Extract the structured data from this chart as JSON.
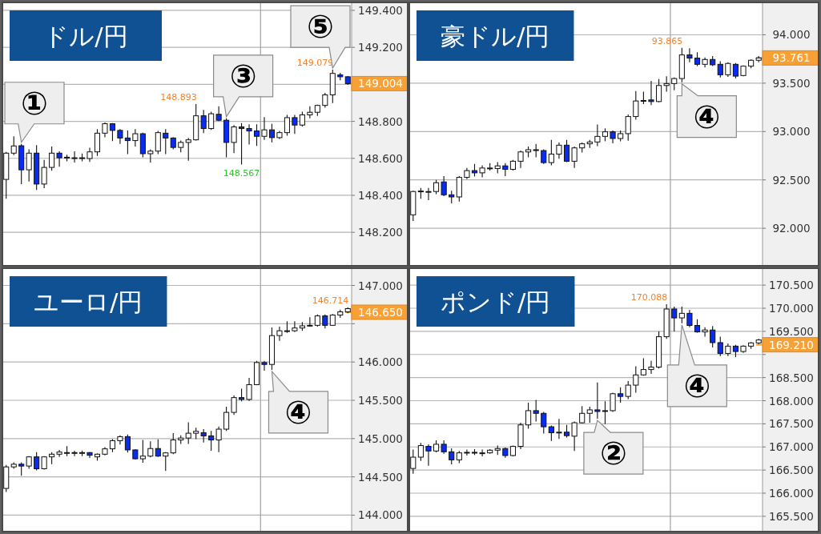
{
  "chart_data": [
    {
      "type": "candlestick",
      "title": "ドル/円",
      "grid": "y",
      "categories": [
        null,
        null,
        null,
        null,
        null,
        null,
        null,
        null,
        null,
        null,
        null,
        null,
        null,
        null,
        null,
        null,
        null,
        null,
        null,
        null,
        null,
        null,
        null,
        null,
        null,
        null,
        null,
        null,
        null,
        null,
        null,
        null,
        null,
        null,
        null,
        null,
        null,
        null,
        null,
        null,
        null,
        null,
        null,
        null,
        null,
        null
      ],
      "ylim": [
        148.019,
        149.443
      ],
      "yticks": [
        {
          "value": 148.2,
          "label": "148.200"
        },
        {
          "value": 148.4,
          "label": "148.400"
        },
        {
          "value": 148.6,
          "label": "148.600"
        },
        {
          "value": 148.8,
          "label": "148.800"
        },
        {
          "value": 149.0,
          "label": null
        },
        {
          "value": 149.2,
          "label": "149.200"
        },
        {
          "value": 149.4,
          "label": "149.400"
        }
      ],
      "ohlc": [
        [
          148.486,
          148.635,
          148.381,
          148.628
        ],
        [
          148.628,
          148.719,
          148.617,
          148.667
        ],
        [
          148.668,
          148.678,
          148.461,
          148.538
        ],
        [
          148.538,
          148.649,
          148.475,
          148.628
        ],
        [
          148.628,
          148.671,
          148.429,
          148.461
        ],
        [
          148.461,
          148.591,
          148.439,
          148.551
        ],
        [
          148.551,
          148.664,
          148.533,
          148.628
        ],
        [
          148.628,
          148.638,
          148.555,
          148.603
        ],
        [
          148.606,
          148.62,
          148.584,
          148.606
        ],
        [
          148.603,
          148.638,
          148.577,
          148.603
        ],
        [
          148.603,
          148.626,
          148.584,
          148.603
        ],
        [
          148.599,
          148.657,
          148.581,
          148.635
        ],
        [
          148.635,
          148.758,
          148.613,
          148.736
        ],
        [
          148.736,
          148.794,
          148.714,
          148.787
        ],
        [
          148.787,
          148.791,
          148.693,
          148.751
        ],
        [
          148.751,
          148.758,
          148.678,
          148.71
        ],
        [
          148.71,
          148.751,
          148.623,
          148.696
        ],
        [
          148.696,
          148.758,
          148.664,
          148.733
        ],
        [
          148.733,
          148.739,
          148.606,
          148.625
        ],
        [
          148.625,
          148.649,
          148.577,
          148.639
        ],
        [
          148.639,
          148.748,
          148.623,
          148.739
        ],
        [
          148.736,
          148.758,
          148.623,
          148.71
        ],
        [
          148.71,
          148.714,
          148.649,
          148.659
        ],
        [
          148.659,
          148.696,
          148.632,
          148.686
        ],
        [
          148.686,
          148.71,
          148.587,
          148.7
        ],
        [
          148.7,
          148.893,
          148.696,
          148.83
        ],
        [
          148.83,
          148.862,
          148.736,
          148.761
        ],
        [
          148.761,
          148.852,
          148.754,
          148.841
        ],
        [
          148.838,
          148.881,
          148.801,
          148.806
        ],
        [
          148.806,
          148.816,
          148.606,
          148.686
        ],
        [
          148.686,
          148.78,
          148.628,
          148.77
        ],
        [
          148.77,
          148.791,
          148.567,
          148.761
        ],
        [
          148.761,
          148.784,
          148.675,
          148.748
        ],
        [
          148.748,
          148.784,
          148.667,
          148.719
        ],
        [
          148.719,
          148.823,
          148.7,
          148.754
        ],
        [
          148.754,
          148.787,
          148.686,
          148.712
        ],
        [
          148.712,
          148.748,
          148.704,
          148.739
        ],
        [
          148.739,
          148.835,
          148.722,
          148.82
        ],
        [
          148.82,
          148.835,
          148.732,
          148.78
        ],
        [
          148.78,
          148.852,
          148.772,
          148.835
        ],
        [
          148.835,
          148.881,
          148.816,
          148.849
        ],
        [
          148.849,
          148.89,
          148.83,
          148.886
        ],
        [
          148.886,
          148.954,
          148.874,
          148.943
        ],
        [
          148.943,
          149.079,
          148.899,
          149.059
        ],
        [
          149.051,
          149.062,
          149.022,
          149.041
        ],
        [
          149.041,
          149.045,
          148.997,
          149.004
        ]
      ],
      "colors": [
        "#ffffff",
        "#ffffff",
        "#0a2cf0",
        "#ffffff",
        "#0a2cf0",
        "#ffffff",
        "#ffffff",
        "#0a2cf0",
        "#ffffff",
        "#ffffff",
        "#ffffff",
        "#ffffff",
        "#ffffff",
        "#ffffff",
        "#0a2cf0",
        "#0a2cf0",
        "#0a2cf0",
        "#ffffff",
        "#0a2cf0",
        "#ffffff",
        "#ffffff",
        "#0a2cf0",
        "#0a2cf0",
        "#ffffff",
        "#ffffff",
        "#ffffff",
        "#0a2cf0",
        "#ffffff",
        "#0a2cf0",
        "#0a2cf0",
        "#ffffff",
        "#0a2cf0",
        "#0a2cf0",
        "#0a2cf0",
        "#ffffff",
        "#0a2cf0",
        "#ffffff",
        "#ffffff",
        "#0a2cf0",
        "#ffffff",
        "#ffffff",
        "#ffffff",
        "#ffffff",
        "#ffffff",
        "#0a2cf0",
        "#0a2cf0"
      ],
      "ref_lines": [
        {
          "axis": "y",
          "value": 149.004,
          "label": "149.004",
          "color": "#f7a035"
        }
      ],
      "value_labels": [
        null,
        null,
        null,
        null,
        null,
        null,
        null,
        null,
        null,
        null,
        null,
        null,
        null,
        null,
        null,
        null,
        null,
        null,
        null,
        null,
        null,
        null,
        null,
        null,
        null,
        "148.893",
        null,
        null,
        null,
        null,
        null,
        "148.567",
        null,
        null,
        null,
        null,
        null,
        null,
        null,
        null,
        null,
        null,
        null,
        "149.079",
        null,
        null
      ],
      "annotations": [
        "①",
        "③",
        "⑤"
      ]
    },
    {
      "type": "candlestick",
      "title": "豪ドル/円",
      "grid": "y",
      "categories": [
        null,
        null,
        null,
        null,
        null,
        null,
        null,
        null,
        null,
        null,
        null,
        null,
        null,
        null,
        null,
        null,
        null,
        null,
        null,
        null,
        null,
        null,
        null,
        null,
        null,
        null,
        null,
        null,
        null,
        null,
        null,
        null,
        null,
        null,
        null,
        null,
        null,
        null,
        null,
        null,
        null,
        null,
        null,
        null,
        null,
        null
      ],
      "ylim": [
        91.612,
        94.335
      ],
      "yticks": [
        {
          "value": 92.0,
          "label": "92.000"
        },
        {
          "value": 92.5,
          "label": "92.500"
        },
        {
          "value": 93.0,
          "label": "93.000"
        },
        {
          "value": 93.5,
          "label": "93.500"
        },
        {
          "value": 94.0,
          "label": "94.000"
        }
      ],
      "ohlc": [
        [
          92.139,
          92.388,
          92.075,
          92.38
        ],
        [
          92.385,
          92.416,
          92.305,
          92.385
        ],
        [
          92.38,
          92.416,
          92.291,
          92.38
        ],
        [
          92.38,
          92.499,
          92.352,
          92.471
        ],
        [
          92.479,
          92.54,
          92.332,
          92.346
        ],
        [
          92.346,
          92.388,
          92.258,
          92.324
        ],
        [
          92.324,
          92.54,
          92.277,
          92.526
        ],
        [
          92.526,
          92.623,
          92.507,
          92.596
        ],
        [
          92.596,
          92.665,
          92.535,
          92.573
        ],
        [
          92.573,
          92.651,
          92.526,
          92.623
        ],
        [
          92.623,
          92.673,
          92.596,
          92.623
        ],
        [
          92.618,
          92.684,
          92.568,
          92.645
        ],
        [
          92.645,
          92.673,
          92.54,
          92.609
        ],
        [
          92.609,
          92.706,
          92.596,
          92.693
        ],
        [
          92.693,
          92.803,
          92.623,
          92.789
        ],
        [
          92.789,
          92.845,
          92.734,
          92.812
        ],
        [
          92.812,
          92.873,
          92.734,
          92.812
        ],
        [
          92.803,
          92.817,
          92.665,
          92.679
        ],
        [
          92.679,
          92.914,
          92.651,
          92.767
        ],
        [
          92.767,
          92.886,
          92.72,
          92.859
        ],
        [
          92.859,
          92.914,
          92.684,
          92.693
        ],
        [
          92.693,
          92.845,
          92.623,
          92.831
        ],
        [
          92.831,
          92.886,
          92.784,
          92.873
        ],
        [
          92.873,
          92.914,
          92.831,
          92.892
        ],
        [
          92.892,
          93.072,
          92.85,
          92.95
        ],
        [
          92.95,
          93.033,
          92.9,
          92.997
        ],
        [
          92.997,
          93.011,
          92.878,
          92.928
        ],
        [
          92.928,
          93.011,
          92.9,
          92.978
        ],
        [
          92.978,
          93.177,
          92.906,
          93.155
        ],
        [
          93.155,
          93.418,
          93.122,
          93.316
        ],
        [
          93.321,
          93.413,
          93.283,
          93.321
        ],
        [
          93.327,
          93.524,
          93.274,
          93.31
        ],
        [
          93.31,
          93.543,
          93.302,
          93.476
        ],
        [
          93.476,
          93.571,
          93.413,
          93.496
        ],
        [
          93.496,
          93.56,
          93.427,
          93.548
        ],
        [
          93.548,
          93.865,
          93.51,
          93.792
        ],
        [
          93.792,
          93.861,
          93.717,
          93.759
        ],
        [
          93.759,
          93.82,
          93.676,
          93.695
        ],
        [
          93.695,
          93.765,
          93.662,
          93.745
        ],
        [
          93.745,
          93.781,
          93.676,
          93.69
        ],
        [
          93.695,
          93.726,
          93.56,
          93.587
        ],
        [
          93.587,
          93.717,
          93.565,
          93.704
        ],
        [
          93.695,
          93.709,
          93.551,
          93.573
        ],
        [
          93.579,
          93.684,
          93.571,
          93.676
        ],
        [
          93.676,
          93.745,
          93.654,
          93.737
        ],
        [
          93.737,
          93.781,
          93.717,
          93.761
        ]
      ],
      "colors": [
        "#ffffff",
        "#ffffff",
        "#ffffff",
        "#ffffff",
        "#0a2cf0",
        "#0a2cf0",
        "#ffffff",
        "#ffffff",
        "#0a2cf0",
        "#ffffff",
        "#ffffff",
        "#ffffff",
        "#0a2cf0",
        "#ffffff",
        "#ffffff",
        "#ffffff",
        "#ffffff",
        "#0a2cf0",
        "#ffffff",
        "#ffffff",
        "#0a2cf0",
        "#ffffff",
        "#ffffff",
        "#ffffff",
        "#ffffff",
        "#ffffff",
        "#0a2cf0",
        "#ffffff",
        "#ffffff",
        "#ffffff",
        "#ffffff",
        "#0a2cf0",
        "#ffffff",
        "#ffffff",
        "#ffffff",
        "#ffffff",
        "#0a2cf0",
        "#0a2cf0",
        "#ffffff",
        "#0a2cf0",
        "#0a2cf0",
        "#ffffff",
        "#0a2cf0",
        "#ffffff",
        "#ffffff",
        "#ffffff"
      ],
      "ref_lines": [
        {
          "axis": "y",
          "value": 93.761,
          "label": "93.761",
          "color": "#f7a035"
        }
      ],
      "value_labels": [
        null,
        null,
        null,
        null,
        null,
        null,
        null,
        null,
        null,
        null,
        null,
        null,
        null,
        null,
        null,
        null,
        null,
        null,
        null,
        null,
        null,
        null,
        null,
        null,
        null,
        null,
        null,
        null,
        null,
        null,
        null,
        null,
        null,
        null,
        null,
        "93.865",
        null,
        null,
        null,
        null,
        null,
        null,
        null,
        null,
        null,
        null
      ],
      "annotations": [
        "④"
      ]
    },
    {
      "type": "candlestick",
      "title": "ユーロ/円",
      "grid": "y",
      "categories": [
        null,
        null,
        null,
        null,
        null,
        null,
        null,
        null,
        null,
        null,
        null,
        null,
        null,
        null,
        null,
        null,
        null,
        null,
        null,
        null,
        null,
        null,
        null,
        null,
        null,
        null,
        null,
        null,
        null,
        null,
        null,
        null,
        null,
        null,
        null,
        null,
        null,
        null,
        null,
        null,
        null,
        null,
        null,
        null,
        null,
        null
      ],
      "ylim": [
        143.785,
        147.225
      ],
      "yticks": [
        {
          "value": 144.0,
          "label": "144.000"
        },
        {
          "value": 144.5,
          "label": "144.500"
        },
        {
          "value": 145.0,
          "label": "145.000"
        },
        {
          "value": 145.5,
          "label": "145.500"
        },
        {
          "value": 146.0,
          "label": "146.000"
        },
        {
          "value": 146.5,
          "label": null
        },
        {
          "value": 147.0,
          "label": "147.000"
        }
      ],
      "ohlc": [
        [
          144.349,
          144.655,
          144.303,
          144.63
        ],
        [
          144.63,
          144.69,
          144.606,
          144.665
        ],
        [
          144.665,
          144.69,
          144.514,
          144.641
        ],
        [
          144.641,
          144.771,
          144.606,
          144.761
        ],
        [
          144.761,
          144.824,
          144.585,
          144.606
        ],
        [
          144.606,
          144.771,
          144.595,
          144.761
        ],
        [
          144.761,
          144.824,
          144.665,
          144.796
        ],
        [
          144.796,
          144.852,
          144.761,
          144.824
        ],
        [
          144.817,
          144.901,
          144.771,
          144.817
        ],
        [
          144.817,
          144.842,
          144.771,
          144.817
        ],
        [
          144.817,
          144.842,
          144.771,
          144.817
        ],
        [
          144.817,
          144.824,
          144.746,
          144.782
        ],
        [
          144.761,
          144.806,
          144.711,
          144.796
        ],
        [
          144.796,
          144.887,
          144.782,
          144.866
        ],
        [
          144.866,
          144.993,
          144.824,
          144.972
        ],
        [
          144.972,
          145.042,
          144.923,
          145.025
        ],
        [
          145.025,
          145.053,
          144.817,
          144.852
        ],
        [
          144.852,
          144.859,
          144.725,
          144.736
        ],
        [
          144.736,
          144.982,
          144.683,
          144.771
        ],
        [
          144.771,
          144.965,
          144.754,
          144.87
        ],
        [
          144.87,
          144.989,
          144.761,
          144.771
        ],
        [
          144.771,
          144.824,
          144.577,
          144.813
        ],
        [
          144.813,
          145.07,
          144.796,
          144.982
        ],
        [
          144.982,
          145.042,
          144.93,
          145.007
        ],
        [
          145.007,
          145.211,
          144.93,
          145.07
        ],
        [
          145.07,
          145.141,
          144.993,
          145.095
        ],
        [
          145.077,
          145.123,
          144.947,
          145.035
        ],
        [
          145.035,
          145.099,
          144.842,
          144.982
        ],
        [
          144.982,
          145.158,
          144.824,
          145.123
        ],
        [
          145.123,
          145.415,
          145.099,
          145.342
        ],
        [
          145.342,
          145.563,
          145.31,
          145.535
        ],
        [
          145.535,
          145.651,
          145.486,
          145.511
        ],
        [
          145.511,
          145.792,
          145.493,
          145.704
        ],
        [
          145.704,
          146.014,
          145.697,
          145.993
        ],
        [
          145.993,
          146.014,
          145.887,
          145.968
        ],
        [
          145.968,
          146.451,
          145.898,
          146.345
        ],
        [
          146.345,
          146.461,
          146.275,
          146.408
        ],
        [
          146.408,
          146.532,
          146.38,
          146.408
        ],
        [
          146.408,
          146.532,
          146.391,
          146.444
        ],
        [
          146.444,
          146.521,
          146.408,
          146.472
        ],
        [
          146.472,
          146.585,
          146.461,
          146.479
        ],
        [
          146.479,
          146.62,
          146.461,
          146.602
        ],
        [
          146.602,
          146.62,
          146.437,
          146.479
        ],
        [
          146.479,
          146.627,
          146.472,
          146.613
        ],
        [
          146.613,
          146.683,
          146.577,
          146.655
        ],
        [
          146.655,
          146.714,
          146.637,
          146.697
        ]
      ],
      "colors": [
        "#ffffff",
        "#ffffff",
        "#0a2cf0",
        "#ffffff",
        "#0a2cf0",
        "#ffffff",
        "#ffffff",
        "#ffffff",
        "#ffffff",
        "#ffffff",
        "#ffffff",
        "#0a2cf0",
        "#ffffff",
        "#ffffff",
        "#ffffff",
        "#ffffff",
        "#0a2cf0",
        "#0a2cf0",
        "#ffffff",
        "#ffffff",
        "#0a2cf0",
        "#ffffff",
        "#ffffff",
        "#ffffff",
        "#ffffff",
        "#ffffff",
        "#0a2cf0",
        "#0a2cf0",
        "#ffffff",
        "#ffffff",
        "#ffffff",
        "#0a2cf0",
        "#ffffff",
        "#ffffff",
        "#0a2cf0",
        "#ffffff",
        "#ffffff",
        "#ffffff",
        "#ffffff",
        "#ffffff",
        "#ffffff",
        "#ffffff",
        "#0a2cf0",
        "#ffffff",
        "#ffffff",
        "#ffffff"
      ],
      "ref_lines": [
        {
          "axis": "y",
          "value": 146.65,
          "label": "146.650",
          "color": "#f7a035"
        }
      ],
      "value_labels": [
        null,
        null,
        null,
        null,
        null,
        null,
        null,
        null,
        null,
        null,
        null,
        null,
        null,
        null,
        null,
        null,
        null,
        null,
        null,
        null,
        null,
        null,
        null,
        null,
        null,
        null,
        null,
        null,
        null,
        null,
        null,
        null,
        null,
        null,
        null,
        null,
        null,
        null,
        null,
        null,
        null,
        null,
        null,
        null,
        null,
        "146.714"
      ],
      "annotations": [
        "④"
      ]
    },
    {
      "type": "candlestick",
      "title": "ポンド/円",
      "grid": "y",
      "categories": [
        null,
        null,
        null,
        null,
        null,
        null,
        null,
        null,
        null,
        null,
        null,
        null,
        null,
        null,
        null,
        null,
        null,
        null,
        null,
        null,
        null,
        null,
        null,
        null,
        null,
        null,
        null,
        null,
        null,
        null,
        null,
        null,
        null,
        null,
        null,
        null,
        null,
        null,
        null,
        null,
        null,
        null,
        null,
        null,
        null,
        null
      ],
      "ylim": [
        165.169,
        170.866
      ],
      "yticks": [
        {
          "value": 165.5,
          "label": "165.500"
        },
        {
          "value": 166.0,
          "label": "166.000"
        },
        {
          "value": 166.5,
          "label": "166.500"
        },
        {
          "value": 167.0,
          "label": "167.000"
        },
        {
          "value": 167.5,
          "label": "167.500"
        },
        {
          "value": 168.0,
          "label": "168.000"
        },
        {
          "value": 168.5,
          "label": "168.500"
        },
        {
          "value": 169.0,
          "label": null
        },
        {
          "value": 169.5,
          "label": "169.500"
        },
        {
          "value": 170.0,
          "label": "170.000"
        },
        {
          "value": 170.5,
          "label": "170.500"
        }
      ],
      "ohlc": [
        [
          166.535,
          166.942,
          166.419,
          166.779
        ],
        [
          166.779,
          167.087,
          166.698,
          167.029
        ],
        [
          167.012,
          167.058,
          166.593,
          166.913
        ],
        [
          166.913,
          167.145,
          166.884,
          167.058
        ],
        [
          167.058,
          167.145,
          166.855,
          166.895
        ],
        [
          166.895,
          166.971,
          166.622,
          166.721
        ],
        [
          166.721,
          166.913,
          166.651,
          166.872
        ],
        [
          166.884,
          166.942,
          166.814,
          166.884
        ],
        [
          166.884,
          166.953,
          166.826,
          166.884
        ],
        [
          166.872,
          166.942,
          166.797,
          166.872
        ],
        [
          166.872,
          166.953,
          166.855,
          166.93
        ],
        [
          166.93,
          167.029,
          166.826,
          166.965
        ],
        [
          166.965,
          166.988,
          166.767,
          166.814
        ],
        [
          166.814,
          167.029,
          166.797,
          167.012
        ],
        [
          167.012,
          167.523,
          166.953,
          167.477
        ],
        [
          167.477,
          167.959,
          167.395,
          167.785
        ],
        [
          167.785,
          168.017,
          167.552,
          167.727
        ],
        [
          167.727,
          167.756,
          167.291,
          167.436
        ],
        [
          167.436,
          167.465,
          167.128,
          167.308
        ],
        [
          167.32,
          167.605,
          167.174,
          167.32
        ],
        [
          167.32,
          167.477,
          167.203,
          167.244
        ],
        [
          167.233,
          167.552,
          166.913,
          167.523
        ],
        [
          167.523,
          167.884,
          167.512,
          167.727
        ],
        [
          167.727,
          167.872,
          167.523,
          167.802
        ],
        [
          167.802,
          168.395,
          167.61,
          167.767
        ],
        [
          167.785,
          167.988,
          167.494,
          167.785
        ],
        [
          167.785,
          168.174,
          167.756,
          168.151
        ],
        [
          168.151,
          168.291,
          167.959,
          168.093
        ],
        [
          168.093,
          168.424,
          168.035,
          168.337
        ],
        [
          168.337,
          168.744,
          168.174,
          168.558
        ],
        [
          168.558,
          168.919,
          168.541,
          168.674
        ],
        [
          168.674,
          168.86,
          168.581,
          168.727
        ],
        [
          168.727,
          169.5,
          168.698,
          169.384
        ],
        [
          169.384,
          170.088,
          169.337,
          169.983
        ],
        [
          169.983,
          170.035,
          169.5,
          169.791
        ],
        [
          169.791,
          170.035,
          169.674,
          169.89
        ],
        [
          169.89,
          169.965,
          169.587,
          169.628
        ],
        [
          169.628,
          169.762,
          169.471,
          169.488
        ],
        [
          169.488,
          169.587,
          169.384,
          169.529
        ],
        [
          169.529,
          169.616,
          169.151,
          169.256
        ],
        [
          169.256,
          169.384,
          168.965,
          169.023
        ],
        [
          169.023,
          169.238,
          168.965,
          169.18
        ],
        [
          169.18,
          169.209,
          168.942,
          169.064
        ],
        [
          169.064,
          169.198,
          169.035,
          169.18
        ],
        [
          169.18,
          169.267,
          169.122,
          169.25
        ],
        [
          169.25,
          169.337,
          169.221,
          169.314
        ]
      ],
      "colors": [
        "#ffffff",
        "#ffffff",
        "#0a2cf0",
        "#ffffff",
        "#0a2cf0",
        "#0a2cf0",
        "#ffffff",
        "#ffffff",
        "#ffffff",
        "#ffffff",
        "#ffffff",
        "#ffffff",
        "#0a2cf0",
        "#ffffff",
        "#ffffff",
        "#ffffff",
        "#0a2cf0",
        "#0a2cf0",
        "#0a2cf0",
        "#ffffff",
        "#0a2cf0",
        "#ffffff",
        "#ffffff",
        "#ffffff",
        "#0a2cf0",
        "#ffffff",
        "#ffffff",
        "#0a2cf0",
        "#ffffff",
        "#ffffff",
        "#ffffff",
        "#ffffff",
        "#ffffff",
        "#ffffff",
        "#0a2cf0",
        "#ffffff",
        "#0a2cf0",
        "#0a2cf0",
        "#ffffff",
        "#0a2cf0",
        "#0a2cf0",
        "#ffffff",
        "#0a2cf0",
        "#ffffff",
        "#ffffff",
        "#ffffff"
      ],
      "ref_lines": [
        {
          "axis": "y",
          "value": 169.21,
          "label": "169.210",
          "color": "#f7a035"
        }
      ],
      "value_labels": [
        null,
        null,
        null,
        null,
        null,
        null,
        null,
        null,
        null,
        null,
        null,
        null,
        null,
        null,
        null,
        null,
        null,
        null,
        null,
        null,
        null,
        null,
        null,
        null,
        null,
        null,
        null,
        null,
        null,
        null,
        null,
        null,
        null,
        "170.088",
        null,
        null,
        null,
        null,
        null,
        null,
        null,
        null,
        null,
        null,
        null,
        null
      ],
      "annotations": [
        "②",
        "④"
      ]
    }
  ]
}
